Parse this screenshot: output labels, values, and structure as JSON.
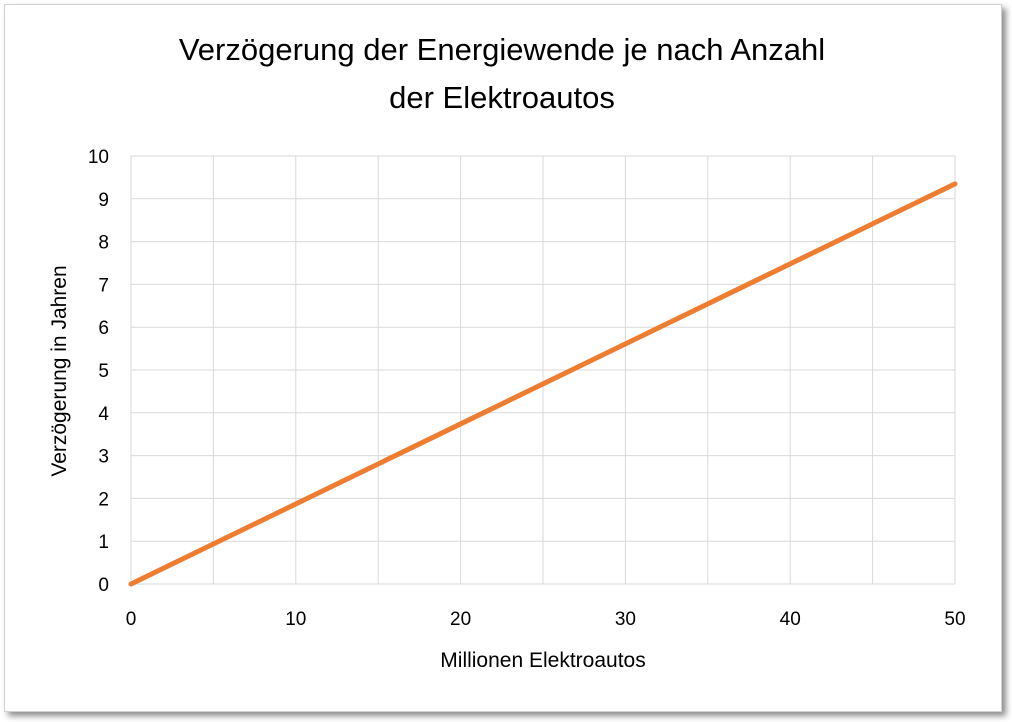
{
  "chart_data": {
    "type": "line",
    "title_lines": [
      "Verzögerung der Energiewende je nach Anzahl",
      "der Elektroautos"
    ],
    "xlabel": "Millionen Elektroautos",
    "ylabel": "Verzögerung in Jahren",
    "xlim": [
      0,
      50
    ],
    "ylim": [
      0,
      10
    ],
    "xticks": [
      0,
      10,
      20,
      30,
      40,
      50
    ],
    "yticks": [
      0,
      1,
      2,
      3,
      4,
      5,
      6,
      7,
      8,
      9,
      10
    ],
    "grid": true,
    "series": [
      {
        "color": "#ED7D31",
        "x": [
          0,
          50
        ],
        "y": [
          0,
          9.35
        ]
      }
    ]
  }
}
